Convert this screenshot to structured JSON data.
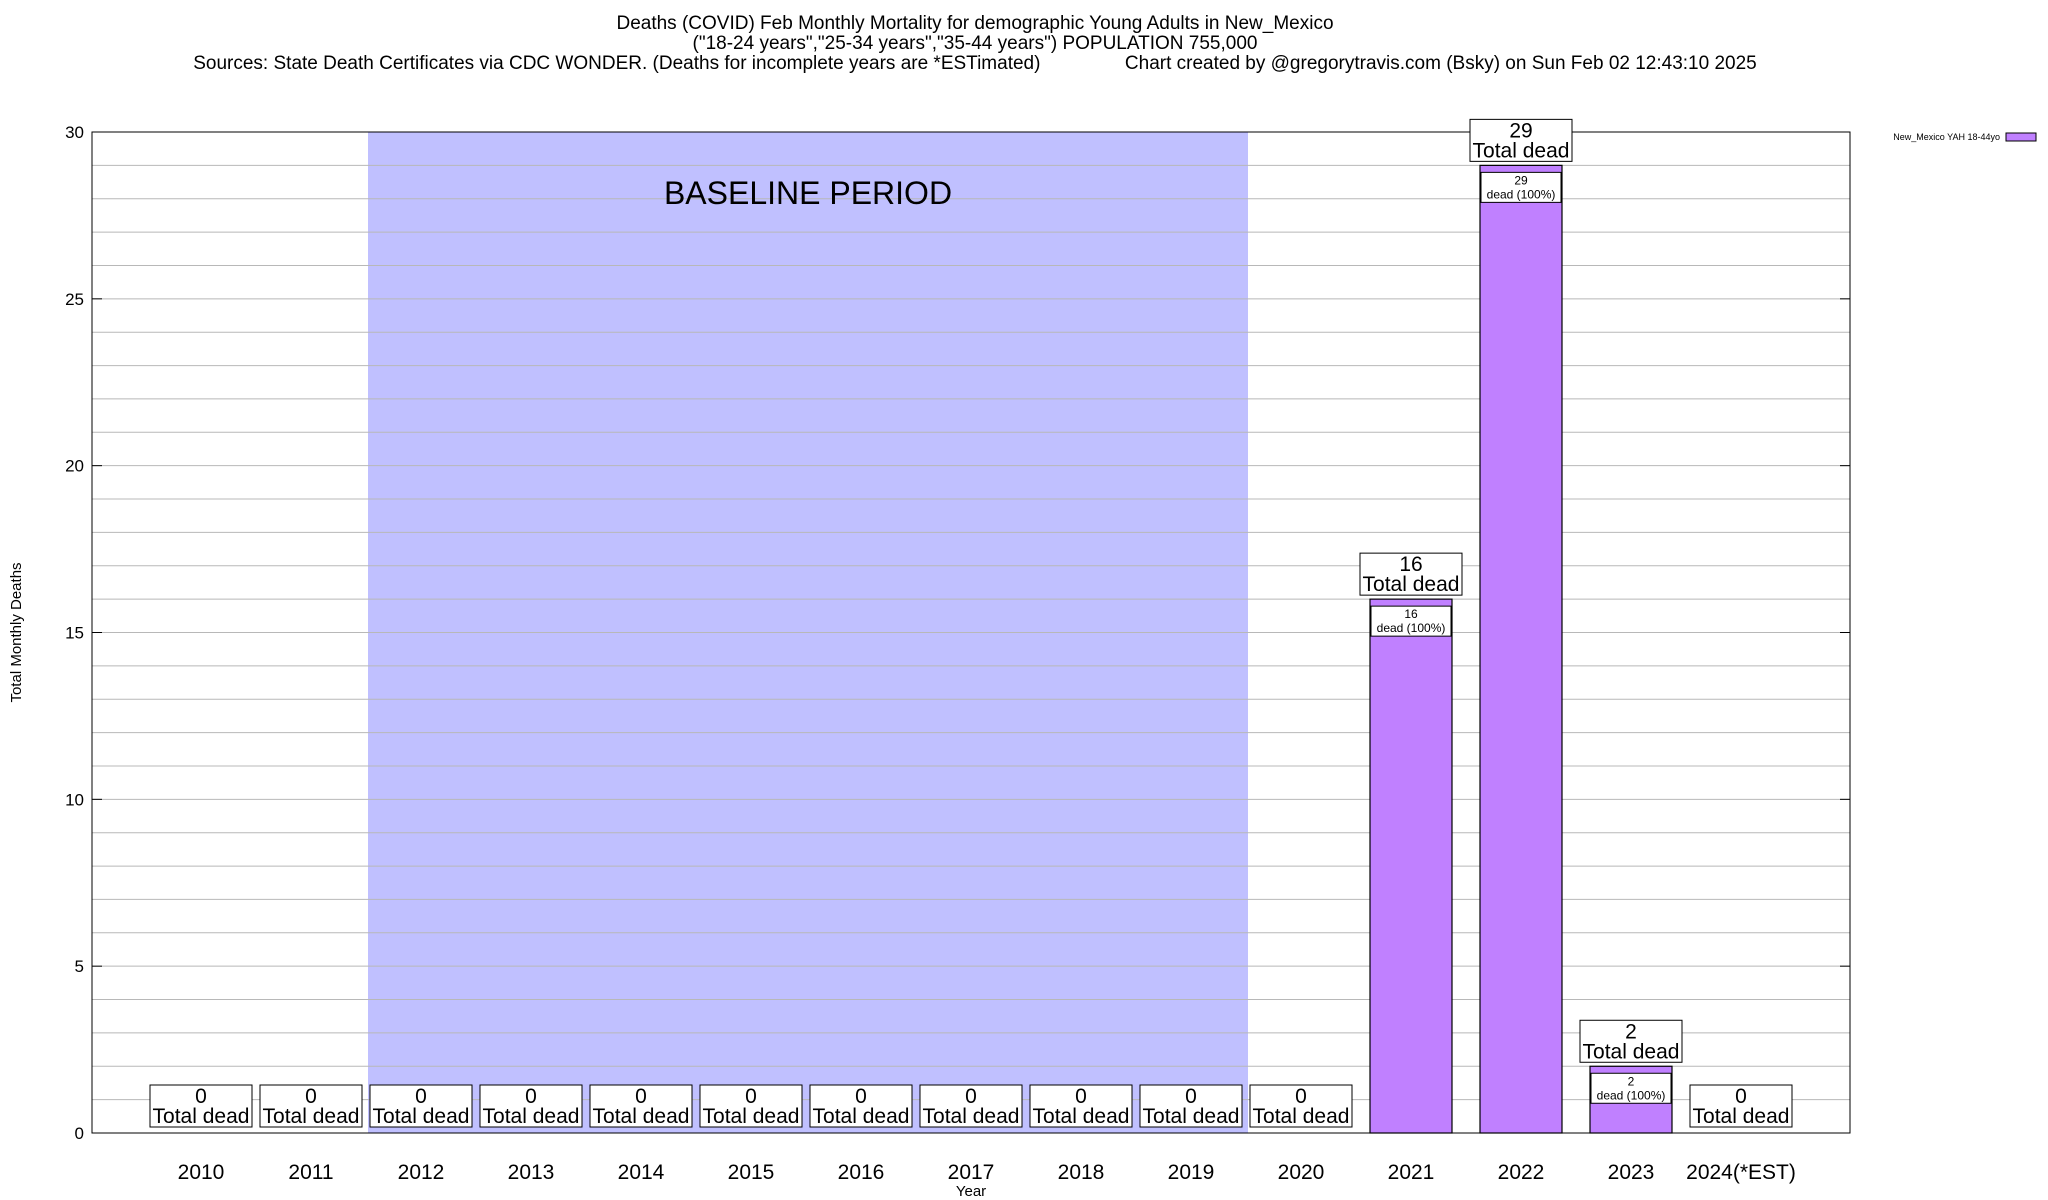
{
  "title": {
    "line1": "Deaths (COVID) Feb Monthly Mortality for demographic Young Adults in New_Mexico",
    "line2": "(\"18-24 years\",\"25-34 years\",\"35-44 years\") POPULATION 755,000",
    "sources": "Sources: State Death Certificates via CDC WONDER. (Deaths for incomplete years are *ESTimated)",
    "credit": "Chart created by @gregorytravis.com (Bsky) on Sun Feb 02 12:43:10 2025"
  },
  "chart_data": {
    "type": "bar",
    "xlabel": "Year",
    "ylabel": "Total Monthly Deaths",
    "ylim": [
      0,
      30
    ],
    "yticks": [
      0,
      5,
      10,
      15,
      20,
      25,
      30
    ],
    "grid": true,
    "legend_position": "top-right",
    "categories": [
      "2010",
      "2011",
      "2012",
      "2013",
      "2014",
      "2015",
      "2016",
      "2017",
      "2018",
      "2019",
      "2020",
      "2021",
      "2022",
      "2023",
      "2024(*EST)"
    ],
    "series": [
      {
        "name": "New_Mexico YAH 18-44yo",
        "color": "#c080ff",
        "values": [
          0,
          0,
          0,
          0,
          0,
          0,
          0,
          0,
          0,
          0,
          0,
          16,
          29,
          2,
          0
        ]
      }
    ],
    "total_label_suffix": "Total dead",
    "inner_label_suffix": "dead (100%)",
    "baseline": {
      "label": "BASELINE PERIOD",
      "from": "2012",
      "to": "2019",
      "color": "#c0c0ff"
    }
  }
}
